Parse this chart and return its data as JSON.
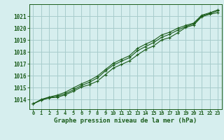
{
  "title": "Graphe pression niveau de la mer (hPa)",
  "background_color": "#d6eeee",
  "grid_color": "#a8cccc",
  "line_color": "#1a5c1a",
  "text_color": "#1a5c1a",
  "xlim": [
    -0.5,
    23.5
  ],
  "ylim": [
    1013.2,
    1022.0
  ],
  "yticks": [
    1014,
    1015,
    1016,
    1017,
    1018,
    1019,
    1020,
    1021
  ],
  "xticks": [
    0,
    1,
    2,
    3,
    4,
    5,
    6,
    7,
    8,
    9,
    10,
    11,
    12,
    13,
    14,
    15,
    16,
    17,
    18,
    19,
    20,
    21,
    22,
    23
  ],
  "line1": [
    1013.65,
    1013.95,
    1014.15,
    1014.2,
    1014.4,
    1014.7,
    1015.05,
    1015.25,
    1015.55,
    1016.1,
    1016.65,
    1016.95,
    1017.25,
    1017.75,
    1018.2,
    1018.5,
    1019.0,
    1019.2,
    1019.6,
    1020.05,
    1020.25,
    1020.95,
    1021.15,
    1021.3
  ],
  "line2": [
    1013.65,
    1013.98,
    1014.18,
    1014.28,
    1014.5,
    1014.82,
    1015.18,
    1015.45,
    1015.82,
    1016.4,
    1016.9,
    1017.22,
    1017.52,
    1018.1,
    1018.45,
    1018.78,
    1019.22,
    1019.48,
    1019.82,
    1020.12,
    1020.35,
    1021.02,
    1021.22,
    1021.45
  ],
  "line3": [
    1013.65,
    1014.02,
    1014.22,
    1014.38,
    1014.62,
    1014.98,
    1015.32,
    1015.6,
    1015.98,
    1016.52,
    1017.05,
    1017.38,
    1017.68,
    1018.3,
    1018.65,
    1018.95,
    1019.42,
    1019.65,
    1019.98,
    1020.22,
    1020.42,
    1021.08,
    1021.28,
    1021.52
  ]
}
